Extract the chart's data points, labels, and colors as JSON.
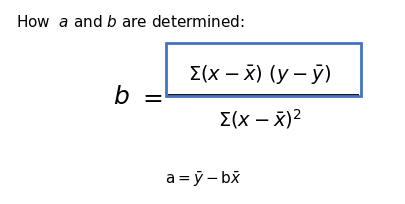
{
  "title_text": "How  $a$ and $b$ are determined:",
  "numerator": "$\\Sigma(x-\\bar{x})\\ (y-\\bar{y})$",
  "denominator": "$\\Sigma(x-\\bar{x})^2$",
  "b_label": "$b$",
  "eq_label": "$=$",
  "a_formula": "$\\mathrm{a} = \\bar{y} - \\mathrm{b}\\bar{x}$",
  "bg_color": "#ffffff",
  "text_color": "#000000",
  "box_color": "#4472C4",
  "title_fontsize": 11,
  "formula_fontsize": 14,
  "b_fontsize": 18,
  "a_fontsize": 11
}
